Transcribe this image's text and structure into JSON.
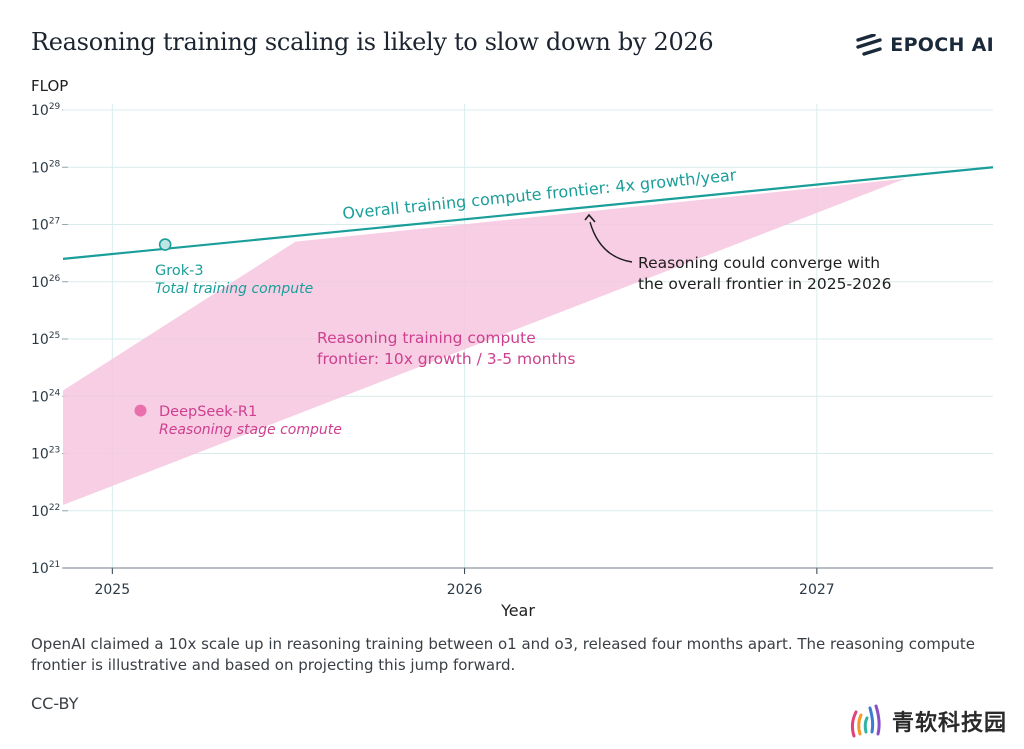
{
  "title": "Reasoning training scaling is likely to slow down by 2026",
  "brand": {
    "logo_icon": "epoch-logo-icon",
    "name": "EPOCH AI"
  },
  "caption": "OpenAI claimed a 10x scale up in reasoning training between o1 and o3, released four months apart. The reasoning compute frontier is illustrative and based on projecting this jump forward.",
  "license": "CC-BY",
  "watermark": {
    "icon": "signal-waves-icon",
    "text": "青软科技园"
  },
  "colors": {
    "teal": "#1a9e9a",
    "pink": "#cf3f8f",
    "pink_fill": "#f6c9e1",
    "grid": "#d8ecec",
    "axis": "#2d3a45"
  },
  "chart_data": {
    "type": "line",
    "ylabel": "FLOP",
    "xlabel": "Year",
    "y_scale": "log10",
    "ylim_exp": [
      21,
      29
    ],
    "y_ticks": [
      {
        "base": "10",
        "exp": "21"
      },
      {
        "base": "10",
        "exp": "22"
      },
      {
        "base": "10",
        "exp": "23"
      },
      {
        "base": "10",
        "exp": "24"
      },
      {
        "base": "10",
        "exp": "25"
      },
      {
        "base": "10",
        "exp": "26"
      },
      {
        "base": "10",
        "exp": "27"
      },
      {
        "base": "10",
        "exp": "28"
      },
      {
        "base": "10",
        "exp": "29"
      }
    ],
    "xlim": [
      2024.86,
      2027.5
    ],
    "x_ticks": [
      {
        "value": 2025,
        "label": "2025"
      },
      {
        "value": 2026,
        "label": "2026"
      },
      {
        "value": 2027,
        "label": "2027"
      }
    ],
    "series": [
      {
        "name": "Overall training compute frontier: 4x growth/year",
        "kind": "line",
        "color": "#1a9e9a",
        "points": [
          [
            2024.86,
            26.4
          ],
          [
            2027.5,
            28.0
          ]
        ]
      },
      {
        "name": "Reasoning training compute frontier: 10x growth / 3-5 months",
        "kind": "band",
        "color": "#f6c9e1",
        "upper": [
          [
            2024.86,
            24.1
          ],
          [
            2025.52,
            26.7
          ],
          [
            2027.25,
            27.8
          ]
        ],
        "lower": [
          [
            2024.86,
            22.1
          ],
          [
            2027.25,
            27.8
          ]
        ]
      }
    ],
    "points": [
      {
        "name": "Grok-3",
        "subtitle": "Total training compute",
        "x": 2025.15,
        "y_exp": 26.65,
        "color": "#1a9e9a",
        "hollow": true
      },
      {
        "name": "DeepSeek-R1",
        "subtitle": "Reasoning stage compute",
        "x": 2025.08,
        "y_exp": 23.75,
        "color": "#e96fad",
        "hollow": false
      }
    ],
    "annotations": {
      "teal_label": "Overall training compute frontier: 4x growth/year",
      "pink_label_lines": [
        "Reasoning training compute",
        "frontier: 10x growth / 3-5 months"
      ],
      "converge_lines": [
        "Reasoning could converge with",
        "the overall frontier in 2025-2026"
      ]
    }
  }
}
